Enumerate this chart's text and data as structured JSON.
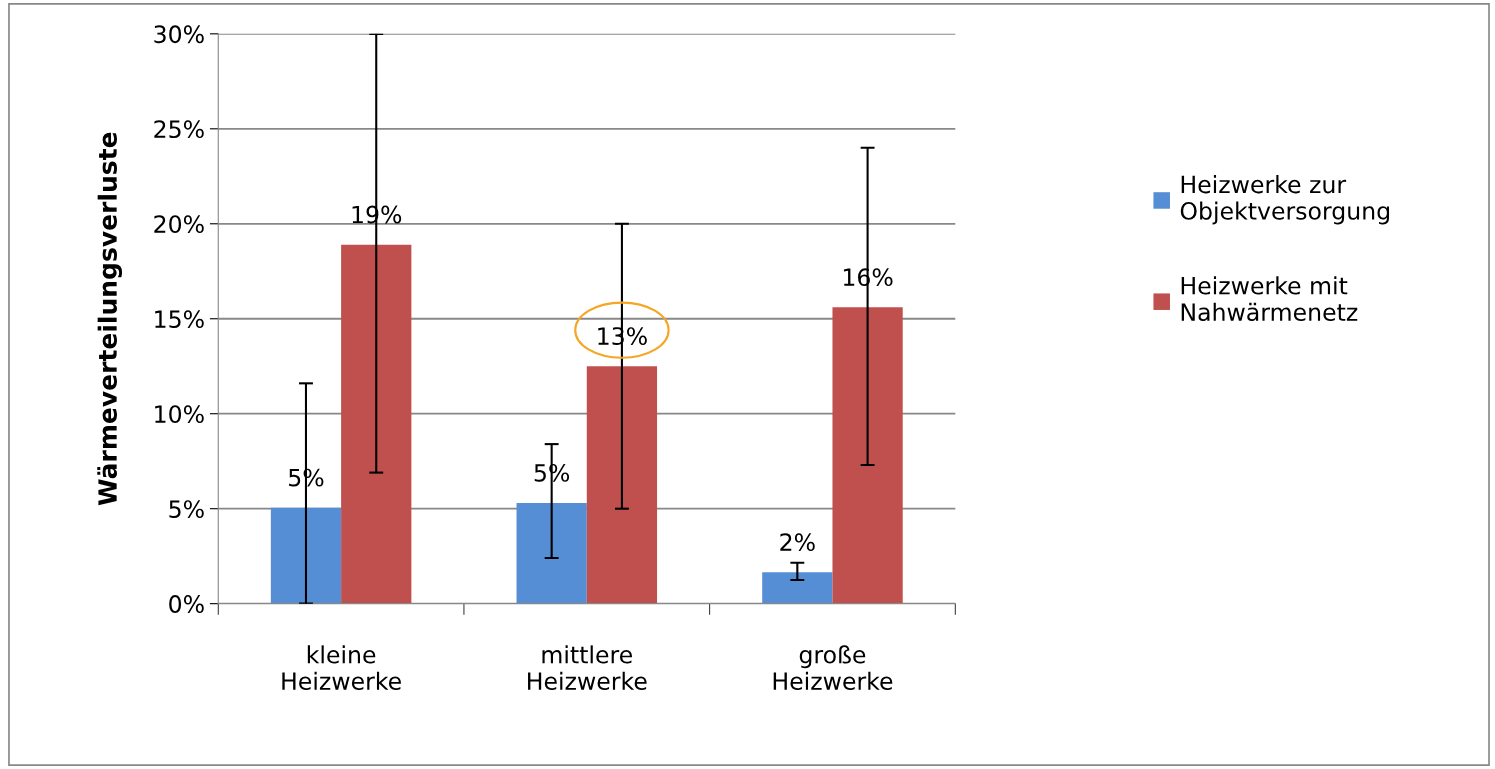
{
  "chart_data": {
    "type": "bar",
    "ylabel": "Wärmeverteilungsverluste",
    "categories": [
      "kleine\nHeizwerke",
      "mittlere\nHeizwerke",
      "große\nHeizwerke"
    ],
    "series": [
      {
        "name": "Heizwerke zur\nObjektversorgung",
        "color": "#558ed5",
        "values": [
          5.05,
          5.3,
          1.65
        ],
        "value_labels": [
          "5%",
          "5%",
          "2%"
        ],
        "errors": [
          [
            0,
            11.6
          ],
          [
            2.4,
            8.4
          ],
          [
            1.25,
            2.15
          ]
        ]
      },
      {
        "name": "Heizwerke mit\nNahwärmenetz",
        "color": "#c0504d",
        "values": [
          18.9,
          12.5,
          15.6
        ],
        "value_labels": [
          "19%",
          "13%",
          "16%"
        ],
        "errors": [
          [
            6.9,
            30
          ],
          [
            5.0,
            20
          ],
          [
            7.3,
            24
          ]
        ]
      }
    ],
    "ylim": [
      0,
      30
    ],
    "yticks": [
      {
        "value": 0,
        "label": "0%"
      },
      {
        "value": 5,
        "label": "5%"
      },
      {
        "value": 10,
        "label": "10%"
      },
      {
        "value": 15,
        "label": "15%"
      },
      {
        "value": 20,
        "label": "20%"
      },
      {
        "value": 25,
        "label": "25%"
      },
      {
        "value": 30,
        "label": "30%"
      }
    ],
    "grid": "y",
    "legend": "right"
  }
}
